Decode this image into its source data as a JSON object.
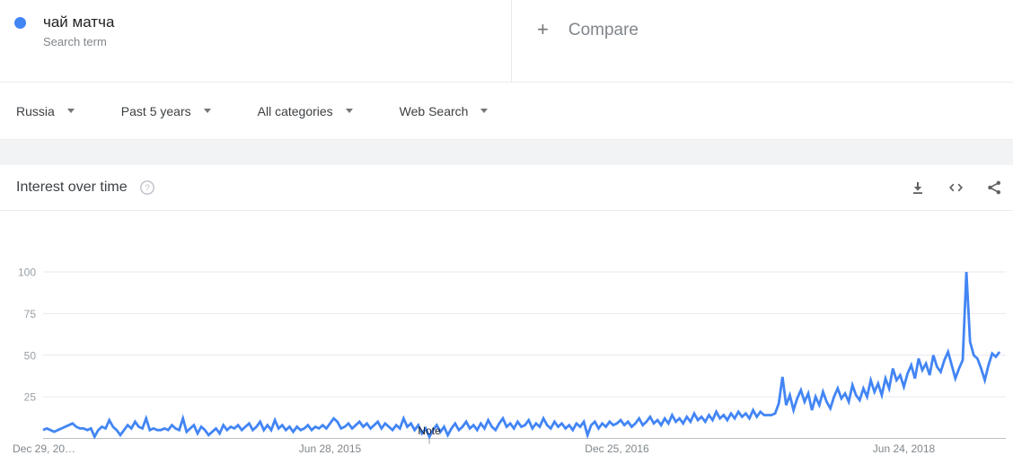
{
  "term_card": {
    "term": "чай матча",
    "type_label": "Search term",
    "dot_color": "#4285f4"
  },
  "compare": {
    "plus_glyph": "+",
    "label": "Compare"
  },
  "filters": [
    {
      "label": "Russia"
    },
    {
      "label": "Past 5 years"
    },
    {
      "label": "All categories"
    },
    {
      "label": "Web Search"
    }
  ],
  "panel": {
    "title": "Interest over time",
    "icons": [
      "help-icon",
      "download-icon",
      "embed-icon",
      "share-icon"
    ]
  },
  "colors": {
    "accent": "#4285f4",
    "grid": "#e8eaed",
    "axis": "#bdc1c6",
    "icon": "#616161",
    "tick_text": "#80868b"
  },
  "chart_data": {
    "type": "line",
    "title": "Interest over time",
    "series_name": "чай матча",
    "x_unit": "week",
    "xlabel": "",
    "ylabel": "",
    "ylim": [
      0,
      100
    ],
    "y_ticks": [
      25,
      50,
      75,
      100
    ],
    "grid": true,
    "legend_position": "none",
    "line_color": "#4285f4",
    "x_tick_labels": [
      {
        "index": 0,
        "label": "Dec 29, 20…"
      },
      {
        "index": 78,
        "label": "Jun 28, 2015"
      },
      {
        "index": 156,
        "label": "Dec 25, 2016"
      },
      {
        "index": 234,
        "label": "Jun 24, 2018"
      }
    ],
    "note_annotation": {
      "label": "Note",
      "index": 105
    },
    "values": [
      5,
      6,
      5,
      4,
      5,
      6,
      7,
      8,
      9,
      7,
      6,
      6,
      5,
      6,
      1,
      5,
      7,
      6,
      11,
      7,
      5,
      2,
      5,
      8,
      6,
      10,
      7,
      6,
      12,
      5,
      6,
      5,
      5,
      6,
      5,
      8,
      6,
      5,
      12,
      4,
      6,
      8,
      3,
      7,
      5,
      2,
      4,
      6,
      3,
      8,
      5,
      7,
      6,
      8,
      5,
      7,
      9,
      5,
      7,
      10,
      5,
      8,
      5,
      11,
      6,
      8,
      5,
      7,
      4,
      7,
      5,
      6,
      8,
      5,
      7,
      6,
      8,
      6,
      9,
      12,
      10,
      6,
      7,
      9,
      6,
      8,
      10,
      7,
      9,
      6,
      8,
      10,
      6,
      9,
      7,
      5,
      8,
      6,
      12,
      7,
      9,
      5,
      8,
      3,
      6,
      1,
      5,
      8,
      4,
      7,
      2,
      6,
      9,
      5,
      7,
      10,
      6,
      8,
      5,
      9,
      6,
      11,
      7,
      5,
      9,
      12,
      7,
      9,
      6,
      10,
      7,
      8,
      11,
      6,
      9,
      7,
      12,
      8,
      6,
      10,
      7,
      9,
      6,
      8,
      5,
      9,
      7,
      10,
      2,
      8,
      10,
      6,
      9,
      7,
      10,
      8,
      9,
      11,
      8,
      10,
      7,
      9,
      12,
      8,
      10,
      13,
      9,
      11,
      8,
      12,
      9,
      14,
      10,
      12,
      9,
      13,
      10,
      15,
      11,
      13,
      10,
      14,
      11,
      16,
      12,
      14,
      11,
      15,
      12,
      16,
      13,
      15,
      12,
      17,
      13,
      16,
      14,
      14,
      14,
      15,
      21,
      37,
      20,
      26,
      17,
      24,
      29,
      22,
      27,
      17,
      25,
      20,
      28,
      22,
      18,
      25,
      30,
      24,
      27,
      22,
      32,
      26,
      23,
      30,
      25,
      35,
      28,
      33,
      26,
      36,
      30,
      42,
      35,
      38,
      31,
      39,
      44,
      36,
      48,
      41,
      45,
      38,
      50,
      43,
      40,
      47,
      52,
      44,
      36,
      42,
      47,
      100,
      58,
      50,
      48,
      42,
      35,
      44,
      51,
      49,
      52
    ]
  }
}
